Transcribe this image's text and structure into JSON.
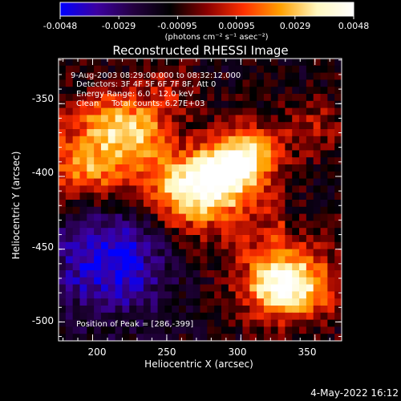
{
  "colorbar": {
    "tick_labels": [
      "-0.0048",
      "-0.0029",
      "-0.00095",
      "0.00095",
      "0.0029",
      "0.0048"
    ],
    "unit_label": "(photons cm⁻² s⁻¹ asec⁻²)"
  },
  "chart_data": {
    "type": "heatmap",
    "title": "Reconstructed RHESSI Image",
    "xlabel": "Heliocentric X (arcsec)",
    "ylabel": "Heliocentric Y (arcsec)",
    "xlim": [
      177,
      368
    ],
    "ylim": [
      -513,
      -319
    ],
    "x_ticks": [
      200,
      250,
      300,
      350
    ],
    "y_ticks": [
      -350,
      -400,
      -450,
      -500
    ],
    "color_range": [
      -0.0048,
      0.0048
    ],
    "colormap": [
      "#0000ff",
      "#3c00a0",
      "#240040",
      "#000000",
      "#8a0000",
      "#ff3000",
      "#ffa000",
      "#fff8c0",
      "#ffffff"
    ],
    "annotations": [
      "9-Aug-2003 08:29:00.000 to 08:32:12.000",
      "Detectors: 3F 4F 5F 6F 7F 8F, Att 0",
      "Energy Range: 6.0 - 12.0 keV",
      "Clean     Total counts: 6.27E+03"
    ],
    "peak_label": "Position of Peak = [286,-399]",
    "emission_peaks": [
      {
        "x": 286,
        "y": -399,
        "value": 0.0048
      },
      {
        "x": 305,
        "y": -385,
        "value": 0.0038
      },
      {
        "x": 262,
        "y": -410,
        "value": 0.0034
      },
      {
        "x": 232,
        "y": -372,
        "value": 0.003
      },
      {
        "x": 210,
        "y": -362,
        "value": 0.0026
      },
      {
        "x": 198,
        "y": -395,
        "value": 0.0022
      },
      {
        "x": 330,
        "y": -468,
        "value": 0.003
      },
      {
        "x": 345,
        "y": -478,
        "value": 0.0028
      },
      {
        "x": 318,
        "y": -482,
        "value": 0.0024
      },
      {
        "x": 348,
        "y": -365,
        "value": 0.0016
      },
      {
        "x": 250,
        "y": -340,
        "value": 0.0014
      }
    ],
    "negative_region": {
      "x": 212,
      "y": -455,
      "value": -0.0048
    }
  },
  "timestamp": "4-May-2022 16:12"
}
